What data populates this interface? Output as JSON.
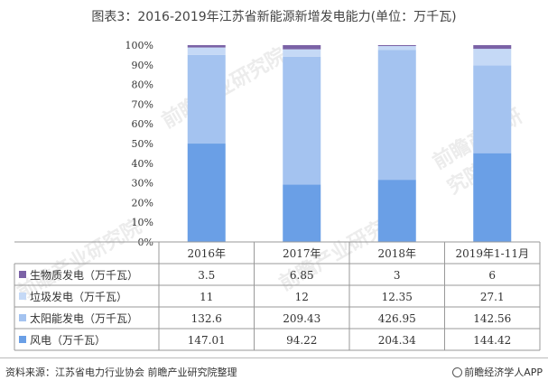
{
  "title": "图表3：2016-2019年江苏省新能源新增发电能力(单位：万千瓦)",
  "source": "资料来源：江苏省电力行业协会 前瞻产业研究院整理",
  "brand": "前瞻经济学人APP",
  "watermark": "前瞻产业研究院",
  "colors": {
    "wind": "#6a9fe6",
    "solar": "#a4c3f0",
    "garbage": "#c5d9f6",
    "biomass": "#7b62a6"
  },
  "chart_data": {
    "type": "bar",
    "stacked": "percent",
    "categories": [
      "2016年",
      "2017年",
      "2018年",
      "2019年1-11月"
    ],
    "y_ticks": [
      "0%",
      "10%",
      "20%",
      "30%",
      "40%",
      "50%",
      "60%",
      "70%",
      "80%",
      "90%",
      "100%"
    ],
    "ylim": [
      0,
      100
    ],
    "grid": false,
    "series": [
      {
        "name": "生物质发电（万千瓦）",
        "key": "biomass",
        "values": [
          3.5,
          6.85,
          3,
          6
        ]
      },
      {
        "name": "垃圾发电（万千瓦）",
        "key": "garbage",
        "values": [
          11,
          12,
          12.35,
          27.1
        ]
      },
      {
        "name": "太阳能发电（万千瓦）",
        "key": "solar",
        "values": [
          132.6,
          209.43,
          426.95,
          142.56
        ]
      },
      {
        "name": "风电（万千瓦）",
        "key": "wind",
        "values": [
          147.01,
          94.22,
          204.34,
          144.42
        ]
      }
    ],
    "table_values": [
      [
        "3.5",
        "6.85",
        "3",
        "6"
      ],
      [
        "11",
        "12",
        "12.35",
        "27.1"
      ],
      [
        "132.6",
        "209.43",
        "426.95",
        "142.56"
      ],
      [
        "147.01",
        "94.22",
        "204.34",
        "144.42"
      ]
    ]
  }
}
